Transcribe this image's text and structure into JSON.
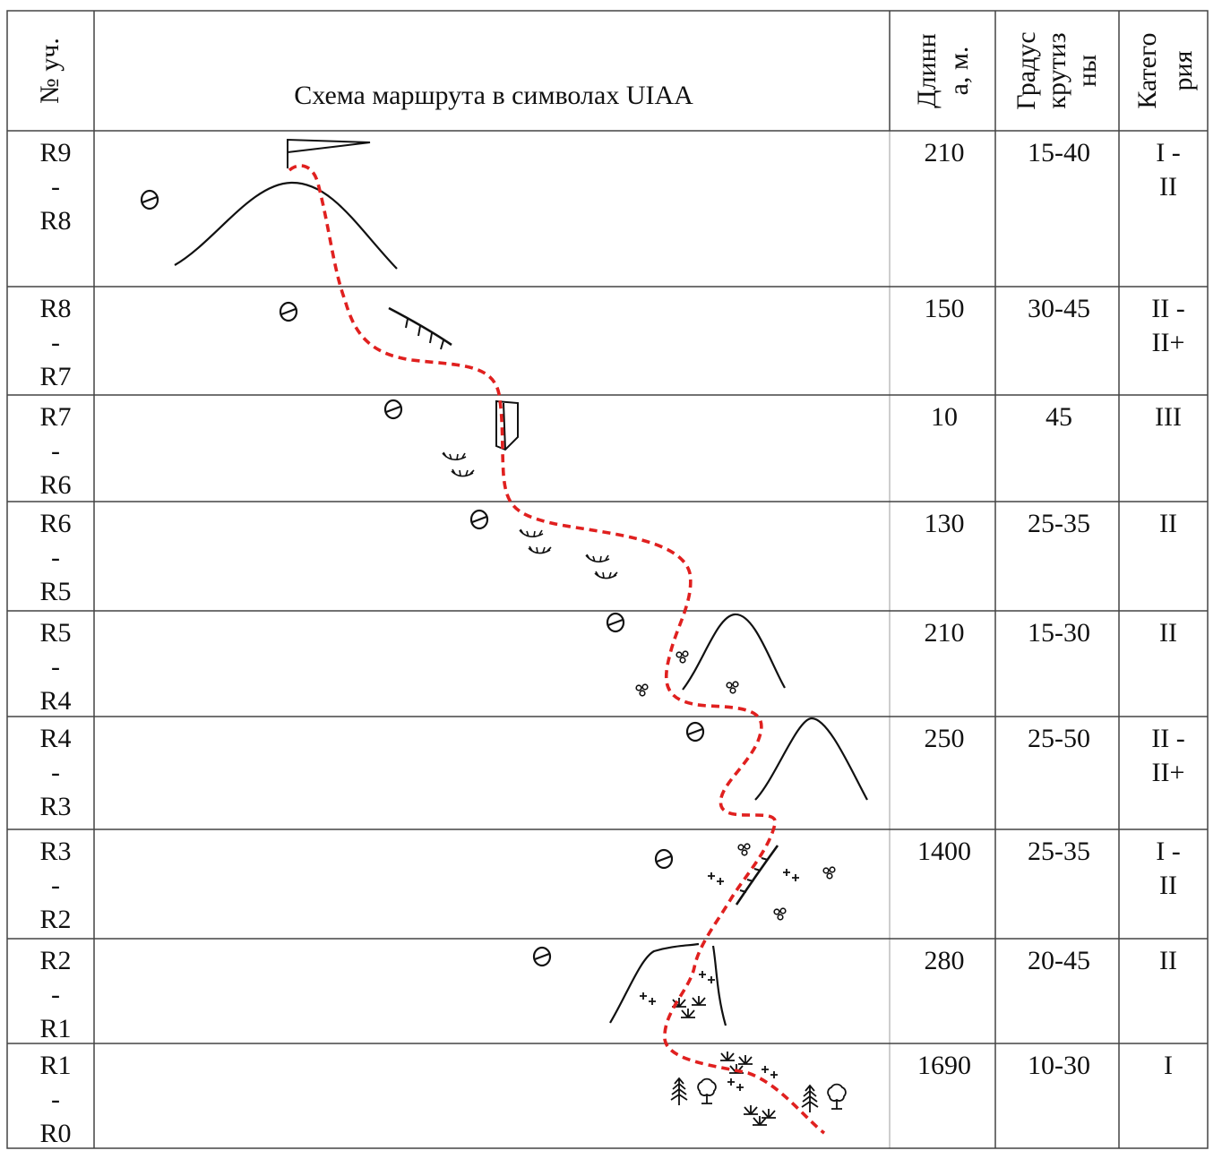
{
  "header": {
    "col_num": "№ уч.",
    "col_scheme": "Схема маршрута в символах UIAA",
    "col_length_l1": "Длинн",
    "col_length_l2": "а, м.",
    "col_grade_l1": "Градус",
    "col_grade_l2": "крутиз",
    "col_grade_l3": "ны",
    "col_cat_l1": "Катего",
    "col_cat_l2": "рия"
  },
  "rows": [
    {
      "from": "R9",
      "dash": "-",
      "to": "R8",
      "length": "210",
      "grade": "15-40",
      "cat1": "I -",
      "cat2": "II"
    },
    {
      "from": "R8",
      "dash": "-",
      "to": "R7",
      "length": "150",
      "grade": "30-45",
      "cat1": "II -",
      "cat2": "II+"
    },
    {
      "from": "R7",
      "dash": "-",
      "to": "R6",
      "length": "10",
      "grade": "45",
      "cat1": "III",
      "cat2": ""
    },
    {
      "from": "R6",
      "dash": "-",
      "to": "R5",
      "length": "130",
      "grade": "25-35",
      "cat1": "II",
      "cat2": ""
    },
    {
      "from": "R5",
      "dash": "-",
      "to": "R4",
      "length": "210",
      "grade": "15-30",
      "cat1": "II",
      "cat2": ""
    },
    {
      "from": "R4",
      "dash": "-",
      "to": "R3",
      "length": "250",
      "grade": "25-50",
      "cat1": "II -",
      "cat2": "II+"
    },
    {
      "from": "R3",
      "dash": "-",
      "to": "R2",
      "length": "1400",
      "grade": "25-35",
      "cat1": "I -",
      "cat2": "II"
    },
    {
      "from": "R2",
      "dash": "-",
      "to": "R1",
      "length": "280",
      "grade": "20-45",
      "cat1": "II",
      "cat2": ""
    },
    {
      "from": "R1",
      "dash": "-",
      "to": "R0",
      "length": "1690",
      "grade": "10-30",
      "cat1": "I",
      "cat2": ""
    }
  ],
  "colors": {
    "route": "#e0201f",
    "ink": "#111111",
    "grid": "#444444"
  },
  "symbols": [
    "summit-flag-icon",
    "ridge-icon",
    "direction-marker-icon",
    "rock-band-icon",
    "chimney-icon",
    "grass-icon",
    "scree-icon",
    "bush-icon",
    "tree-icon"
  ]
}
